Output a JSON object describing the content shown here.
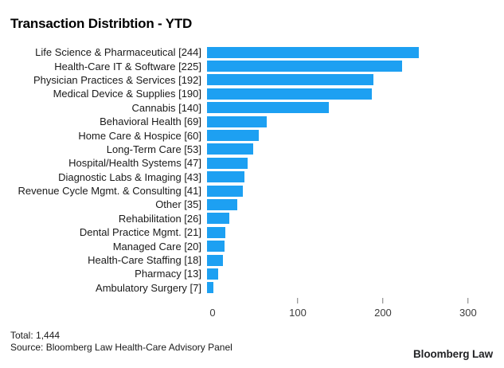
{
  "title": "Transaction Distribtion - YTD",
  "chart_data": {
    "type": "bar",
    "orientation": "horizontal",
    "title": "Transaction Distribtion - YTD",
    "categories": [
      "Life Science & Pharmaceutical",
      "Health-Care IT & Software",
      "Physician Practices & Services",
      "Medical Device & Supplies",
      "Cannabis",
      "Behavioral Health",
      "Home Care & Hospice",
      "Long-Term Care",
      "Hospital/Health Systems",
      "Diagnostic Labs & Imaging",
      "Revenue Cycle Mgmt. & Consulting",
      "Other",
      "Rehabilitation",
      "Dental Practice Mgmt.",
      "Managed Care",
      "Health-Care Staffing",
      "Pharmacy",
      "Ambulatory Surgery"
    ],
    "values": [
      244,
      225,
      192,
      190,
      140,
      69,
      60,
      53,
      47,
      43,
      41,
      35,
      26,
      21,
      20,
      18,
      13,
      7
    ],
    "value_label_format": "category [value]",
    "x_ticks": [
      0,
      100,
      200,
      300
    ],
    "x_tick_labels": [
      "0",
      "100",
      "200",
      "300"
    ],
    "xlim": [
      0,
      330
    ],
    "bar_color": "#1da0f2",
    "grid": false,
    "legend": false
  },
  "footer": {
    "total": "Total: 1,444",
    "source": "Source: Bloomberg Law Health-Care Advisory Panel",
    "brand": "Bloomberg Law"
  }
}
